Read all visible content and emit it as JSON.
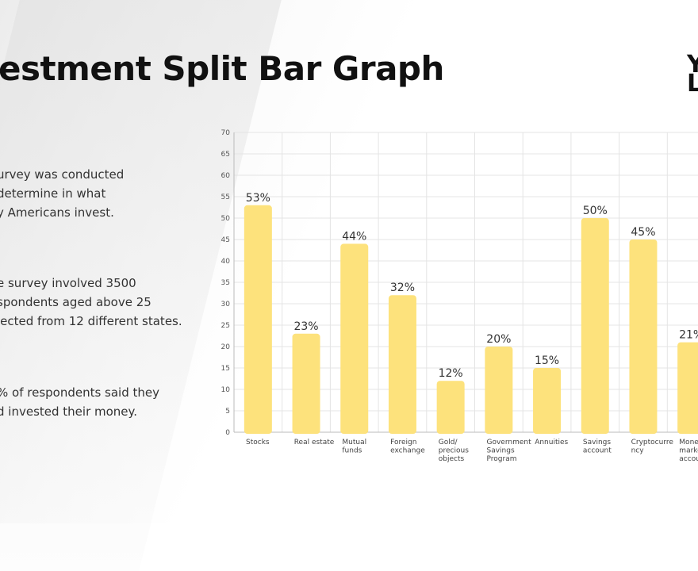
{
  "slide": {
    "title": "estment Split Bar Graph",
    "paragraphs": [
      [
        "urvey was conducted",
        "determine in what",
        "y Americans invest."
      ],
      [
        "e survey involved  3500",
        "spondents aged above 25",
        "lected from  12 different states."
      ],
      [
        "% of respondents said they",
        "d invested their money."
      ]
    ],
    "logo_text": "YL"
  },
  "chart_data": {
    "type": "bar",
    "categories": [
      [
        "Stocks"
      ],
      [
        "Real estate"
      ],
      [
        "Mutual",
        "funds"
      ],
      [
        "Foreign",
        "exchange"
      ],
      [
        "Gold/",
        "precious",
        "objects"
      ],
      [
        "Government",
        "Savings",
        "Program"
      ],
      [
        "Annuities"
      ],
      [
        "Savings",
        "account"
      ],
      [
        "Cryptocurre",
        "ncy"
      ],
      [
        "Money",
        "market",
        "account"
      ]
    ],
    "values": [
      53,
      23,
      44,
      32,
      12,
      20,
      15,
      50,
      45,
      21
    ],
    "data_labels": [
      "53%",
      "23%",
      "44%",
      "32%",
      "12%",
      "20%",
      "15%",
      "50%",
      "45%",
      "21%"
    ],
    "ylim": [
      0,
      70
    ],
    "yticks": [
      0,
      5,
      10,
      15,
      20,
      25,
      30,
      35,
      40,
      45,
      50,
      55,
      60,
      65,
      70
    ],
    "grid": true,
    "bar_color": "#fde27c"
  }
}
